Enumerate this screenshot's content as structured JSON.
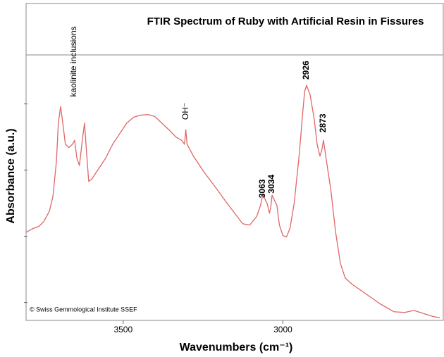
{
  "chart_data": {
    "type": "line",
    "title": "FTIR Spectrum of Ruby with Artificial Resin in Fissures",
    "xlabel": "Wavenumbers (cm⁻¹)",
    "ylabel": "Absorbance (a.u.)",
    "credit": "© Swiss Gemmological Institute SSEF",
    "xlim": [
      3804,
      2498
    ],
    "ylim": [
      -0.27,
      3.74
    ],
    "xticks": [
      3500,
      3000
    ],
    "yticks": [
      0,
      1,
      2,
      3
    ],
    "series": [
      {
        "color": "#e06666",
        "x": [
          3804,
          3786,
          3764,
          3749,
          3731,
          3720,
          3709,
          3703,
          3696,
          3689,
          3681,
          3670,
          3659,
          3652,
          3645,
          3637,
          3628,
          3621,
          3615,
          3608,
          3599,
          3577,
          3555,
          3533,
          3511,
          3489,
          3467,
          3445,
          3423,
          3401,
          3379,
          3357,
          3335,
          3317,
          3308,
          3304,
          3300,
          3280,
          3247,
          3214,
          3181,
          3148,
          3126,
          3104,
          3082,
          3070,
          3063,
          3049,
          3042,
          3038,
          3034,
          3019,
          3011,
          3000,
          2989,
          2978,
          2965,
          2949,
          2938,
          2932,
          2926,
          2915,
          2902,
          2893,
          2884,
          2878,
          2873,
          2865,
          2850,
          2835,
          2820,
          2805,
          2782,
          2740,
          2696,
          2652,
          2619,
          2590,
          2564,
          2531,
          2509
        ],
        "values": [
          1.06,
          1.11,
          1.15,
          1.22,
          1.38,
          1.6,
          2.13,
          2.71,
          2.96,
          2.71,
          2.39,
          2.34,
          2.39,
          2.45,
          2.18,
          2.07,
          2.45,
          2.71,
          2.29,
          1.83,
          1.86,
          2.02,
          2.18,
          2.39,
          2.55,
          2.71,
          2.8,
          2.83,
          2.84,
          2.81,
          2.71,
          2.61,
          2.5,
          2.45,
          2.39,
          2.61,
          2.39,
          2.21,
          1.97,
          1.76,
          1.54,
          1.33,
          1.19,
          1.17,
          1.3,
          1.47,
          1.63,
          1.49,
          1.35,
          1.44,
          1.62,
          1.47,
          1.17,
          1.01,
          0.99,
          1.12,
          1.49,
          2.23,
          2.87,
          3.19,
          3.28,
          3.14,
          2.77,
          2.39,
          2.21,
          2.31,
          2.45,
          2.18,
          1.7,
          1.06,
          0.59,
          0.37,
          0.27,
          0.13,
          -0.02,
          -0.14,
          -0.15,
          -0.12,
          -0.16,
          -0.21,
          -0.23
        ]
      }
    ],
    "annotations": [
      {
        "text": "kaolinite inclusions",
        "x": 3654,
        "y": 3.64
      },
      {
        "text": "OH⁻",
        "x": 3304,
        "y": 2.89
      },
      {
        "text": "3063",
        "x": 3063,
        "y": 1.72
      },
      {
        "text": "3034",
        "x": 3034,
        "y": 1.79
      },
      {
        "text": "2926",
        "x": 2926,
        "y": 3.51
      },
      {
        "text": "2873",
        "x": 2873,
        "y": 2.71
      }
    ]
  }
}
